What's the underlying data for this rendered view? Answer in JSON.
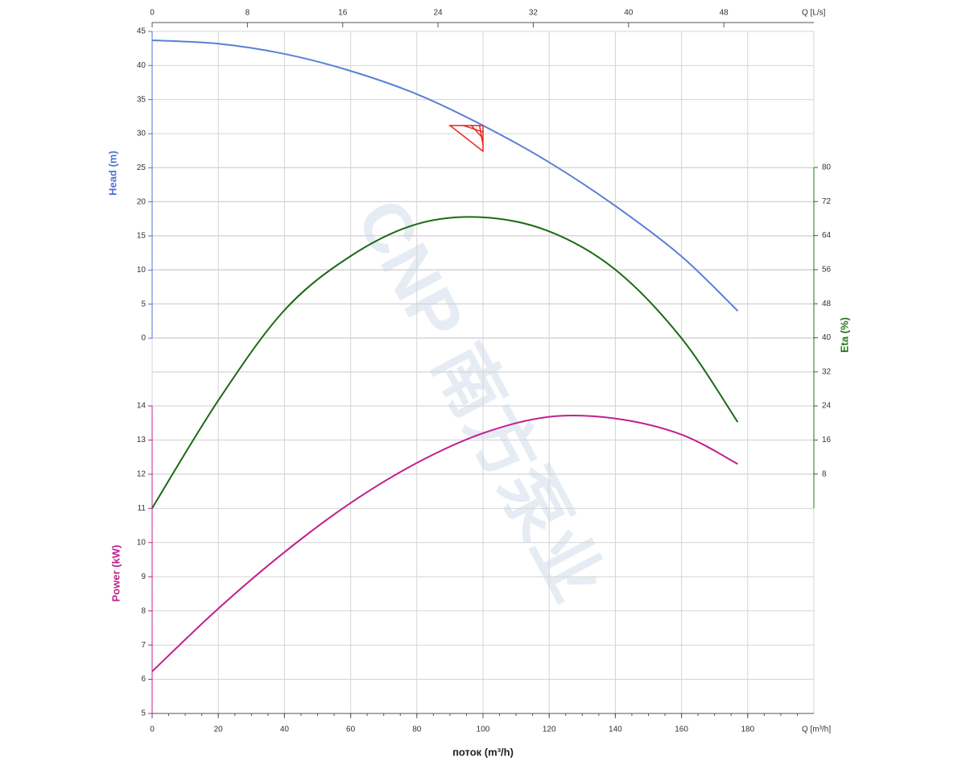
{
  "chart_data": {
    "type": "line",
    "x_label": "поток (m³/h)",
    "x_axis_label": "Q [m³/h]",
    "xlim": [
      0,
      200
    ],
    "xticks": [
      0,
      20,
      40,
      60,
      80,
      100,
      120,
      140,
      160,
      180
    ],
    "x2_axis_label": "Q [L/s]",
    "x2lim": [
      0,
      55.56
    ],
    "x2ticks": [
      0,
      8,
      16,
      24,
      32,
      40,
      48
    ],
    "y_label": "Head (m)",
    "ylim": [
      0,
      45
    ],
    "yticks": [
      0,
      5,
      10,
      15,
      20,
      25,
      30,
      35,
      40,
      45
    ],
    "y_color": "#4f74d4",
    "y2_label": "Eta (%)",
    "y2lim": [
      0,
      80
    ],
    "y2ticks": [
      8,
      16,
      24,
      32,
      40,
      48,
      56,
      64,
      72,
      80
    ],
    "y2_color": "#1e7a10",
    "y3_label": "Power (kW)",
    "y3lim": [
      5,
      14
    ],
    "y3ticks": [
      5,
      6,
      7,
      8,
      9,
      10,
      11,
      12,
      13,
      14
    ],
    "y3_color": "#c0208f",
    "grid": true,
    "x": [
      0,
      20,
      40,
      60,
      80,
      100,
      120,
      140,
      160,
      177
    ],
    "series": [
      {
        "axis": "y",
        "color": "#5a7fd6",
        "values": [
          43.7,
          43.2,
          41.7,
          39.2,
          35.8,
          31.2,
          25.8,
          19.4,
          12.0,
          4.0
        ]
      },
      {
        "axis": "y2",
        "color": "#1a6b12",
        "values": [
          0,
          25.3,
          46.5,
          59.2,
          66.7,
          68.3,
          65.0,
          56.0,
          39.9,
          20.2
        ]
      },
      {
        "axis": "y3",
        "color": "#c0208f",
        "values": [
          6.23,
          8.07,
          9.72,
          11.16,
          12.33,
          13.2,
          13.68,
          13.63,
          13.16,
          12.3
        ]
      }
    ],
    "operating_point": {
      "x": 100,
      "y": 31.2,
      "color": "#e8261c"
    },
    "watermark": "CNP 南方泵业"
  }
}
